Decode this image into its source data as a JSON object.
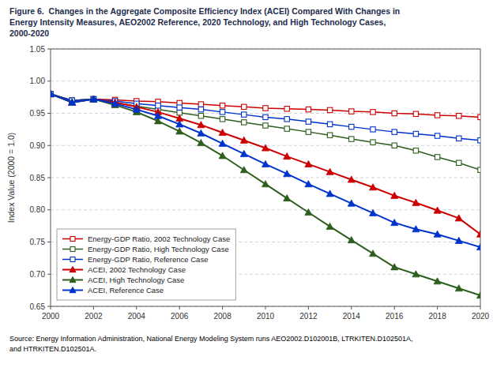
{
  "chart_data": {
    "type": "line",
    "title": [
      "Figure 6.  Changes in the Aggregate Composite Efficiency Index (ACEI) Compared With Changes in",
      "Energy Intensity Measures, AEO2002 Reference, 2020 Technology, and High Technology Cases,",
      "2000-2020"
    ],
    "y_label": "Index Value (2000 = 1.0)",
    "annotations": [
      "Source: Energy Information Administration, National Energy Modeling System runs AEO2002.D102001B, LTRKITEN.D102501A,",
      "and HTRKITEN.D102501A."
    ],
    "x": [
      2000,
      2001,
      2002,
      2003,
      2004,
      2005,
      2006,
      2007,
      2008,
      2009,
      2010,
      2011,
      2012,
      2013,
      2014,
      2015,
      2016,
      2017,
      2018,
      2019,
      2020
    ],
    "series": [
      {
        "name": "Energy-GDP Ratio, 2002 Technology Case",
        "color": "#CC0000",
        "marker": "square",
        "values": [
          0.98,
          0.97,
          0.972,
          0.971,
          0.969,
          0.968,
          0.966,
          0.964,
          0.962,
          0.96,
          0.958,
          0.957,
          0.956,
          0.955,
          0.953,
          0.952,
          0.95,
          0.949,
          0.947,
          0.946,
          0.944
        ]
      },
      {
        "name": "Energy-GDP Ratio, High Technology Case",
        "color": "#2D5E1E",
        "marker": "square",
        "values": [
          0.98,
          0.97,
          0.972,
          0.967,
          0.961,
          0.956,
          0.951,
          0.946,
          0.941,
          0.936,
          0.931,
          0.926,
          0.921,
          0.916,
          0.91,
          0.905,
          0.9,
          0.892,
          0.882,
          0.873,
          0.862
        ]
      },
      {
        "name": "Energy-GDP Ratio, Reference Case",
        "color": "#0033CC",
        "marker": "square",
        "values": [
          0.98,
          0.97,
          0.972,
          0.969,
          0.965,
          0.962,
          0.959,
          0.956,
          0.952,
          0.948,
          0.944,
          0.941,
          0.937,
          0.933,
          0.929,
          0.925,
          0.921,
          0.918,
          0.915,
          0.911,
          0.908
        ]
      },
      {
        "name": "ACEI, 2002 Technology Case",
        "color": "#CC0000",
        "marker": "triangle",
        "values": [
          0.98,
          0.967,
          0.972,
          0.967,
          0.96,
          0.952,
          0.942,
          0.932,
          0.92,
          0.908,
          0.896,
          0.883,
          0.871,
          0.859,
          0.847,
          0.835,
          0.822,
          0.811,
          0.799,
          0.787,
          0.762
        ]
      },
      {
        "name": "ACEI, High Technology Case",
        "color": "#2D5E1E",
        "marker": "triangle",
        "values": [
          0.98,
          0.967,
          0.972,
          0.963,
          0.952,
          0.938,
          0.922,
          0.904,
          0.884,
          0.862,
          0.84,
          0.818,
          0.796,
          0.774,
          0.753,
          0.732,
          0.711,
          0.7,
          0.689,
          0.678,
          0.667
        ]
      },
      {
        "name": "ACEI, Reference Case",
        "color": "#0033CC",
        "marker": "triangle",
        "values": [
          0.98,
          0.967,
          0.972,
          0.965,
          0.956,
          0.946,
          0.933,
          0.919,
          0.903,
          0.887,
          0.871,
          0.856,
          0.84,
          0.825,
          0.81,
          0.795,
          0.78,
          0.77,
          0.762,
          0.752,
          0.742
        ]
      }
    ],
    "xlim": [
      2000,
      2020
    ],
    "ylim": [
      0.65,
      1.05
    ],
    "xticks": [
      2000,
      2002,
      2004,
      2006,
      2008,
      2010,
      2012,
      2014,
      2016,
      2018,
      2020
    ],
    "yticks": [
      0.65,
      {
        "value": 0.7,
        "label": "0.70"
      },
      0.75,
      {
        "value": 0.8,
        "label": "0.80"
      },
      0.85,
      {
        "value": 0.9,
        "label": "0.90"
      },
      0.95,
      {
        "value": 1.0,
        "label": "1.00"
      },
      1.05
    ],
    "grid": true,
    "legend": "lower left"
  }
}
